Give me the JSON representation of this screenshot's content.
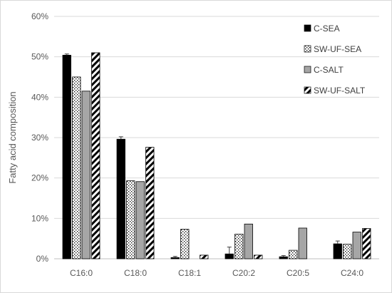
{
  "chart_data": {
    "type": "bar",
    "title": "",
    "xlabel": "",
    "ylabel": "Fatty acid composition",
    "ylim": [
      0,
      60
    ],
    "y_ticks": [
      "0%",
      "10%",
      "20%",
      "30%",
      "40%",
      "50%",
      "60%"
    ],
    "y_tick_values": [
      0,
      10,
      20,
      30,
      40,
      50,
      60
    ],
    "grid": true,
    "legend_position": "top-right",
    "categories": [
      "C16:0",
      "C18:0",
      "C18:1",
      "C20:2",
      "C20:5",
      "C24:0"
    ],
    "series": [
      {
        "name": "C-SEA",
        "pattern": "solid-black",
        "values": [
          50.4,
          29.6,
          0.3,
          1.2,
          0.5,
          3.7
        ],
        "errors": [
          0.3,
          0.6,
          0.3,
          1.7,
          0.3,
          0.7
        ]
      },
      {
        "name": "SW-UF-SEA",
        "pattern": "dotted",
        "values": [
          45.0,
          19.3,
          7.3,
          6.1,
          2.1,
          3.6
        ],
        "errors": [
          0,
          0,
          0,
          0,
          0,
          0
        ]
      },
      {
        "name": "C-SALT",
        "pattern": "solid-gray",
        "values": [
          41.5,
          19.1,
          0,
          8.6,
          7.6,
          6.6
        ],
        "errors": [
          0,
          0,
          0,
          0,
          0,
          0
        ]
      },
      {
        "name": "SW-UF-SALT",
        "pattern": "diagonal-stripes",
        "values": [
          51.0,
          27.6,
          0.9,
          0.9,
          0,
          7.5
        ],
        "errors": [
          0,
          0,
          0,
          0,
          0,
          0
        ]
      }
    ],
    "colors": {
      "grid": "#d9d9d9",
      "axis": "#bfbfbf",
      "text": "#595959",
      "black": "#000000",
      "gray": "#a6a6a6"
    }
  }
}
